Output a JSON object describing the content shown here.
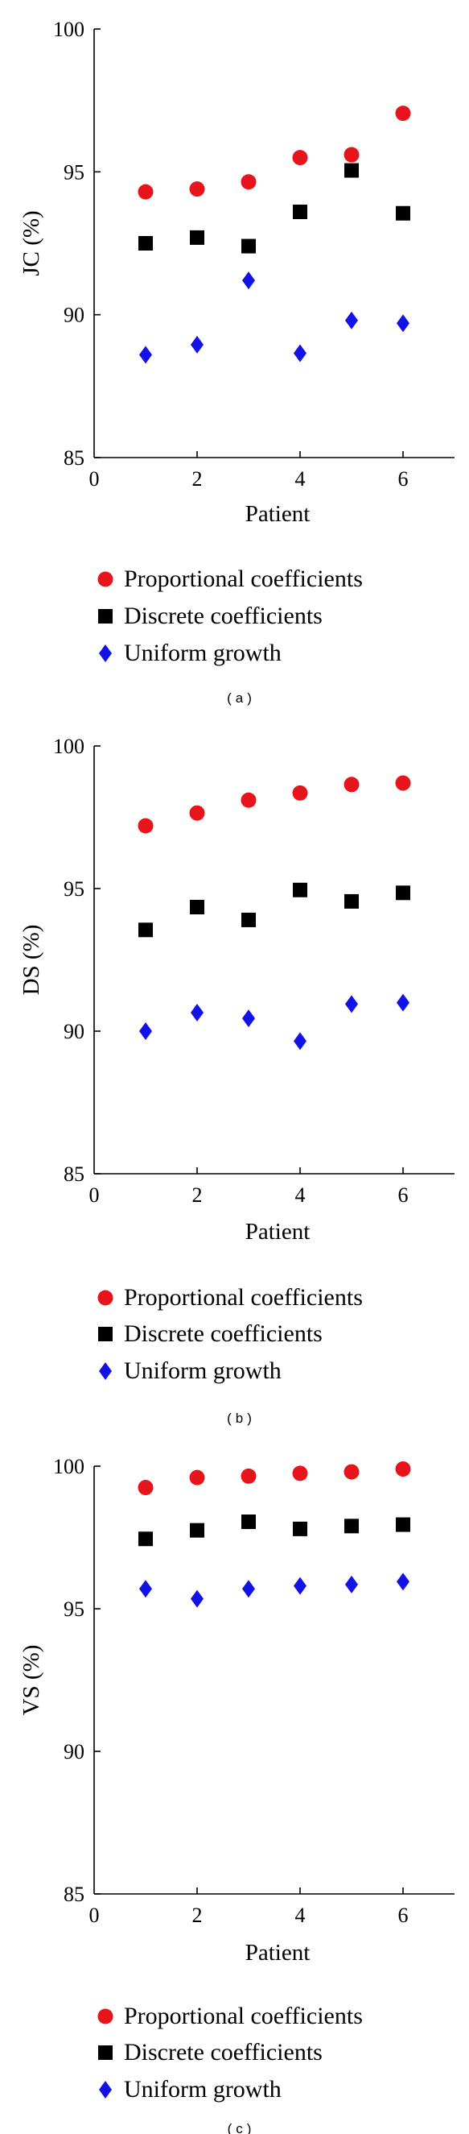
{
  "colors": {
    "proportional": "#e8141b",
    "discrete": "#000000",
    "uniform": "#1212e6"
  },
  "chart_data": [
    {
      "type": "scatter",
      "caption": "(a)",
      "xlabel": "Patient",
      "ylabel": "JC (%)",
      "xlim": [
        0,
        7
      ],
      "ylim": [
        85,
        100
      ],
      "xticks": [
        0,
        2,
        4,
        6
      ],
      "yticks": [
        85,
        90,
        95,
        100
      ],
      "x": [
        1,
        2,
        3,
        4,
        5,
        6
      ],
      "series": [
        {
          "name": "Proportional coefficients",
          "marker": "circle",
          "values": [
            94.3,
            94.4,
            94.65,
            95.5,
            95.6,
            97.05
          ]
        },
        {
          "name": "Discrete coefficients",
          "marker": "square",
          "values": [
            92.5,
            92.7,
            92.4,
            93.6,
            95.05,
            93.55
          ]
        },
        {
          "name": "Uniform growth",
          "marker": "diamond",
          "values": [
            88.6,
            88.95,
            91.2,
            88.65,
            89.8,
            89.7
          ]
        }
      ]
    },
    {
      "type": "scatter",
      "caption": "(b)",
      "xlabel": "Patient",
      "ylabel": "DS (%)",
      "xlim": [
        0,
        7
      ],
      "ylim": [
        85,
        100
      ],
      "xticks": [
        0,
        2,
        4,
        6
      ],
      "yticks": [
        85,
        90,
        95,
        100
      ],
      "x": [
        1,
        2,
        3,
        4,
        5,
        6
      ],
      "series": [
        {
          "name": "Proportional coefficients",
          "marker": "circle",
          "values": [
            97.2,
            97.65,
            98.1,
            98.35,
            98.65,
            98.7
          ]
        },
        {
          "name": "Discrete coefficients",
          "marker": "square",
          "values": [
            93.55,
            94.35,
            93.9,
            94.95,
            94.55,
            94.85
          ]
        },
        {
          "name": "Uniform growth",
          "marker": "diamond",
          "values": [
            90.0,
            90.65,
            90.45,
            89.65,
            90.95,
            91.0
          ]
        }
      ]
    },
    {
      "type": "scatter",
      "caption": "(c)",
      "xlabel": "Patient",
      "ylabel": "VS (%)",
      "xlim": [
        0,
        7
      ],
      "ylim": [
        85,
        100
      ],
      "xticks": [
        0,
        2,
        4,
        6
      ],
      "yticks": [
        85,
        90,
        95,
        100
      ],
      "x": [
        1,
        2,
        3,
        4,
        5,
        6
      ],
      "series": [
        {
          "name": "Proportional coefficients",
          "marker": "circle",
          "values": [
            99.25,
            99.6,
            99.65,
            99.75,
            99.8,
            99.9
          ]
        },
        {
          "name": "Discrete coefficients",
          "marker": "square",
          "values": [
            97.45,
            97.75,
            98.05,
            97.8,
            97.9,
            97.95
          ]
        },
        {
          "name": "Uniform growth",
          "marker": "diamond",
          "values": [
            95.7,
            95.35,
            95.7,
            95.8,
            95.85,
            95.95
          ]
        }
      ]
    }
  ]
}
